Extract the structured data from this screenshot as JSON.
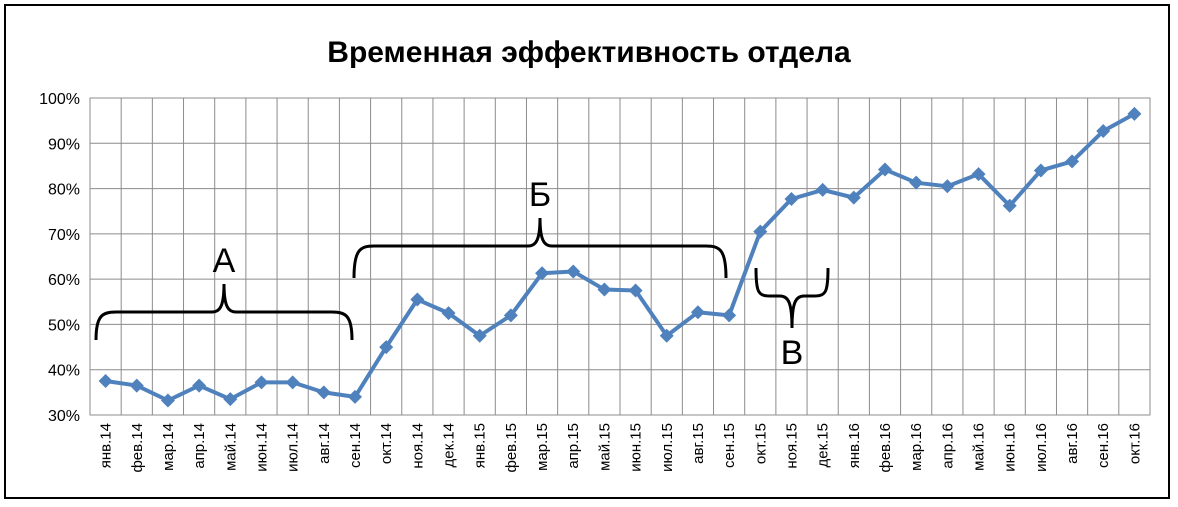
{
  "chart_data": {
    "type": "line",
    "title": "Временная эффективность отдела",
    "xlabel": "",
    "ylabel": "",
    "ylim": [
      30,
      100
    ],
    "yticks": [
      30,
      40,
      50,
      60,
      70,
      80,
      90,
      100
    ],
    "ytick_labels": [
      "30%",
      "40%",
      "50%",
      "60%",
      "70%",
      "80%",
      "90%",
      "100%"
    ],
    "grid": true,
    "legend": "none",
    "categories": [
      "янв.14",
      "фев.14",
      "мар.14",
      "апр.14",
      "май.14",
      "июн.14",
      "июл.14",
      "авг.14",
      "сен.14",
      "окт.14",
      "ноя.14",
      "дек.14",
      "янв.15",
      "фев.15",
      "мар.15",
      "апр.15",
      "май.15",
      "июн.15",
      "июл.15",
      "авг.15",
      "сен.15",
      "окт.15",
      "ноя.15",
      "дек.15",
      "янв.16",
      "фев.16",
      "мар.16",
      "апр.16",
      "май.16",
      "июн.16",
      "июл.16",
      "авг.16",
      "сен.16",
      "окт.16"
    ],
    "series": [
      {
        "color": "#4f81bd",
        "marker": "diamond",
        "values": [
          37.5,
          36.5,
          33.2,
          36.5,
          33.5,
          37.2,
          37.2,
          35.0,
          34.0,
          45.0,
          55.5,
          52.5,
          47.5,
          52.0,
          61.3,
          61.7,
          57.7,
          57.5,
          47.5,
          52.7,
          52.0,
          70.5,
          77.7,
          79.7,
          78.0,
          84.2,
          81.3,
          80.5,
          83.2,
          76.2,
          84.0,
          86.0,
          92.7,
          96.5
        ]
      }
    ],
    "annotations": [
      {
        "label": "А",
        "from": "янв.14",
        "to": "сен.14",
        "orientation": "above"
      },
      {
        "label": "Б",
        "from": "сен.14",
        "to": "сен.15",
        "orientation": "above"
      },
      {
        "label": "В",
        "from": "сен.15",
        "to": "дек.15",
        "orientation": "below"
      }
    ]
  }
}
